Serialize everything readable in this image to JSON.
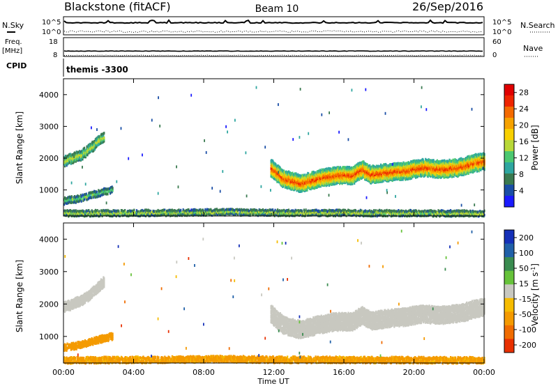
{
  "header": {
    "station": "Blackstone (fitACF)",
    "beam": "Beam 10",
    "date": "26/Sep/2016"
  },
  "top_panels": {
    "nsky_label": "N.Sky",
    "nsearch_label": "N.Search",
    "noise_ticks_left": [
      "10^5",
      "10^0"
    ],
    "noise_ticks_right": [
      "10^5",
      "10^0"
    ],
    "freq_label": "Freq.",
    "freq_unit": "[MHz]",
    "freq_ticks": [
      "18",
      "8"
    ],
    "nave_label": "Nave",
    "nave_ticks": [
      "60",
      "0"
    ],
    "cpid_label": "CPID",
    "cpid_value": "themis -3300"
  },
  "colors": {
    "power_scale": [
      "#1a1aff",
      "#1a4ea6",
      "#3a7a50",
      "#2ea6a0",
      "#4cc870",
      "#b8d838",
      "#f8d000",
      "#f6a200",
      "#f46a00",
      "#ee2400",
      "#e00000"
    ],
    "velocity_scale": [
      "#1530b8",
      "#2060a8",
      "#3a8c50",
      "#66c23a",
      "#c8c8c0",
      "#f6bc00",
      "#f49a00",
      "#f06c00",
      "#e83000"
    ]
  },
  "chart_data": [
    {
      "type": "heatmap",
      "title": "",
      "xlabel": "Time UT",
      "ylabel": "Slant Range [km]",
      "x_ticks": [
        "00:00",
        "04:00",
        "08:00",
        "12:00",
        "16:00",
        "20:00",
        "00:00"
      ],
      "xlim_hours": [
        0,
        24
      ],
      "ylim": [
        180,
        4500
      ],
      "y_ticks": [
        1000,
        2000,
        3000,
        4000
      ],
      "colorbar_label": "Power [dB]",
      "colorbar_ticks": [
        4,
        8,
        12,
        16,
        20,
        24,
        28
      ],
      "colorbar_range": [
        0,
        30
      ],
      "features": [
        {
          "name": "early F echoes",
          "t": [
            0.0,
            0.5,
            1.0,
            1.5,
            2.0,
            2.3
          ],
          "range": [
            1900,
            2000,
            2100,
            2300,
            2550,
            2700
          ],
          "width": 250,
          "power": 14
        },
        {
          "name": "early E echoes",
          "t": [
            0.0,
            0.8,
            1.5,
            2.2,
            2.8
          ],
          "range": [
            650,
            720,
            820,
            930,
            1000
          ],
          "width": 150,
          "power": 10
        },
        {
          "name": "near range clutter",
          "t": [
            0.0,
            6.0,
            9.0,
            12.0,
            24.0
          ],
          "range": [
            260,
            280,
            300,
            280,
            260
          ],
          "width": 130,
          "power": 12
        },
        {
          "name": "afternoon band",
          "t": [
            11.8,
            12.5,
            13.5,
            14.5,
            15.5,
            16.5,
            17.0,
            17.5,
            18.5,
            19.5,
            20.5,
            21.5,
            22.5,
            23.5,
            24.0
          ],
          "range": [
            1700,
            1350,
            1200,
            1350,
            1450,
            1450,
            1650,
            1480,
            1550,
            1600,
            1700,
            1650,
            1700,
            1850,
            1900
          ],
          "width": 480,
          "power": 22
        }
      ]
    },
    {
      "type": "heatmap",
      "title": "",
      "xlabel": "Time UT",
      "ylabel": "Slant Range [km]",
      "x_ticks": [
        "00:00",
        "04:00",
        "08:00",
        "12:00",
        "16:00",
        "20:00",
        "00:00"
      ],
      "xlim_hours": [
        0,
        24
      ],
      "ylim": [
        180,
        4500
      ],
      "y_ticks": [
        1000,
        2000,
        3000,
        4000
      ],
      "colorbar_label": "Velocity [m s^-1]",
      "colorbar_ticks": [
        200,
        100,
        50,
        15,
        -15,
        -50,
        -100,
        -200
      ],
      "colorbar_range": [
        -250,
        250
      ],
      "features": [
        {
          "name": "early F echoes",
          "t": [
            0.0,
            0.5,
            1.0,
            1.5,
            2.0,
            2.3
          ],
          "range": [
            1900,
            2000,
            2100,
            2300,
            2550,
            2700
          ],
          "width": 250,
          "velocity": 0
        },
        {
          "name": "early E echoes",
          "t": [
            0.0,
            0.8,
            1.5,
            2.2,
            2.8
          ],
          "range": [
            650,
            720,
            820,
            930,
            1000
          ],
          "width": 150,
          "velocity": -70
        },
        {
          "name": "near range clutter",
          "t": [
            0.0,
            6.0,
            9.0,
            12.0,
            24.0
          ],
          "range": [
            260,
            280,
            300,
            280,
            260
          ],
          "width": 130,
          "velocity": -60
        },
        {
          "name": "afternoon band",
          "t": [
            11.8,
            12.5,
            13.5,
            14.5,
            15.5,
            16.5,
            17.0,
            17.5,
            18.5,
            19.5,
            20.5,
            21.5,
            22.5,
            23.5,
            24.0
          ],
          "range": [
            1700,
            1350,
            1200,
            1350,
            1450,
            1450,
            1650,
            1480,
            1550,
            1600,
            1700,
            1650,
            1700,
            1850,
            1900
          ],
          "width": 480,
          "velocity": 0
        }
      ]
    }
  ]
}
